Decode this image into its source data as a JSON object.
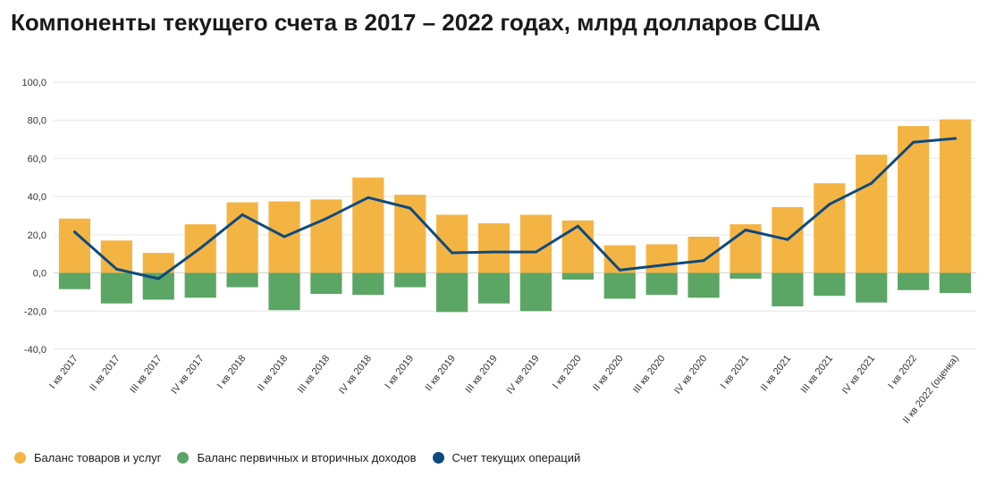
{
  "title": "Компоненты текущего счета в 2017 – 2022 годах, млрд долларов США",
  "colors": {
    "goods": "#F4B443",
    "income": "#5BA565",
    "current": "#0E4A7E",
    "grid": "#e6e6e6",
    "axis_text": "#333333"
  },
  "legend": [
    {
      "label": "Баланс товаров и услуг",
      "color": "#F4B443"
    },
    {
      "label": "Баланс первичных и вторичных доходов",
      "color": "#5BA565"
    },
    {
      "label": "Счет текущих операций",
      "color": "#0E4A7E"
    }
  ],
  "chart_data": {
    "type": "bar",
    "stacked": true,
    "title": "Компоненты текущего счета в 2017 – 2022 годах, млрд долларов США",
    "ylim": [
      -40,
      100
    ],
    "yticks": [
      -40,
      -20,
      0,
      20,
      40,
      60,
      80,
      100
    ],
    "ytick_labels": [
      "-40,0",
      "-20,0",
      "0,0",
      "20,0",
      "40,0",
      "60,0",
      "80,0",
      "100,0"
    ],
    "grid": true,
    "legend_position": "bottom-left",
    "categories": [
      "I кв 2017",
      "II кв 2017",
      "III кв 2017",
      "IV кв 2017",
      "I кв 2018",
      "II кв 2018",
      "III кв 2018",
      "IV кв 2018",
      "I кв 2019",
      "II кв 2019",
      "III кв 2019",
      "IV кв 2019",
      "I кв 2020",
      "II кв 2020",
      "III кв 2020",
      "IV кв 2020",
      "I кв 2021",
      "II кв 2021",
      "III кв 2021",
      "IV кв 2021",
      "I кв 2022",
      "II кв 2022 (оценка)"
    ],
    "series": [
      {
        "name": "Баланс товаров и услуг",
        "kind": "bar",
        "values": [
          28.5,
          17.0,
          10.5,
          25.5,
          37.0,
          37.5,
          38.5,
          50.0,
          41.0,
          30.5,
          26.0,
          30.5,
          27.5,
          14.5,
          15.0,
          19.0,
          25.5,
          34.5,
          47.0,
          62.0,
          77.0,
          80.5
        ]
      },
      {
        "name": "Баланс первичных и вторичных доходов",
        "kind": "bar",
        "values": [
          -8.5,
          -16.0,
          -14.0,
          -13.0,
          -7.5,
          -19.5,
          -11.0,
          -11.5,
          -7.5,
          -20.5,
          -16.0,
          -20.0,
          -3.5,
          -13.5,
          -11.5,
          -13.0,
          -3.0,
          -17.5,
          -12.0,
          -15.5,
          -9.0,
          -10.5
        ]
      },
      {
        "name": "Счет текущих операций",
        "kind": "line",
        "values": [
          21.5,
          2.0,
          -3.0,
          13.0,
          30.5,
          19.0,
          28.5,
          39.5,
          34.0,
          10.5,
          11.0,
          11.0,
          24.5,
          1.5,
          4.0,
          6.5,
          22.5,
          17.5,
          36.0,
          47.0,
          68.5,
          70.5
        ]
      }
    ]
  }
}
